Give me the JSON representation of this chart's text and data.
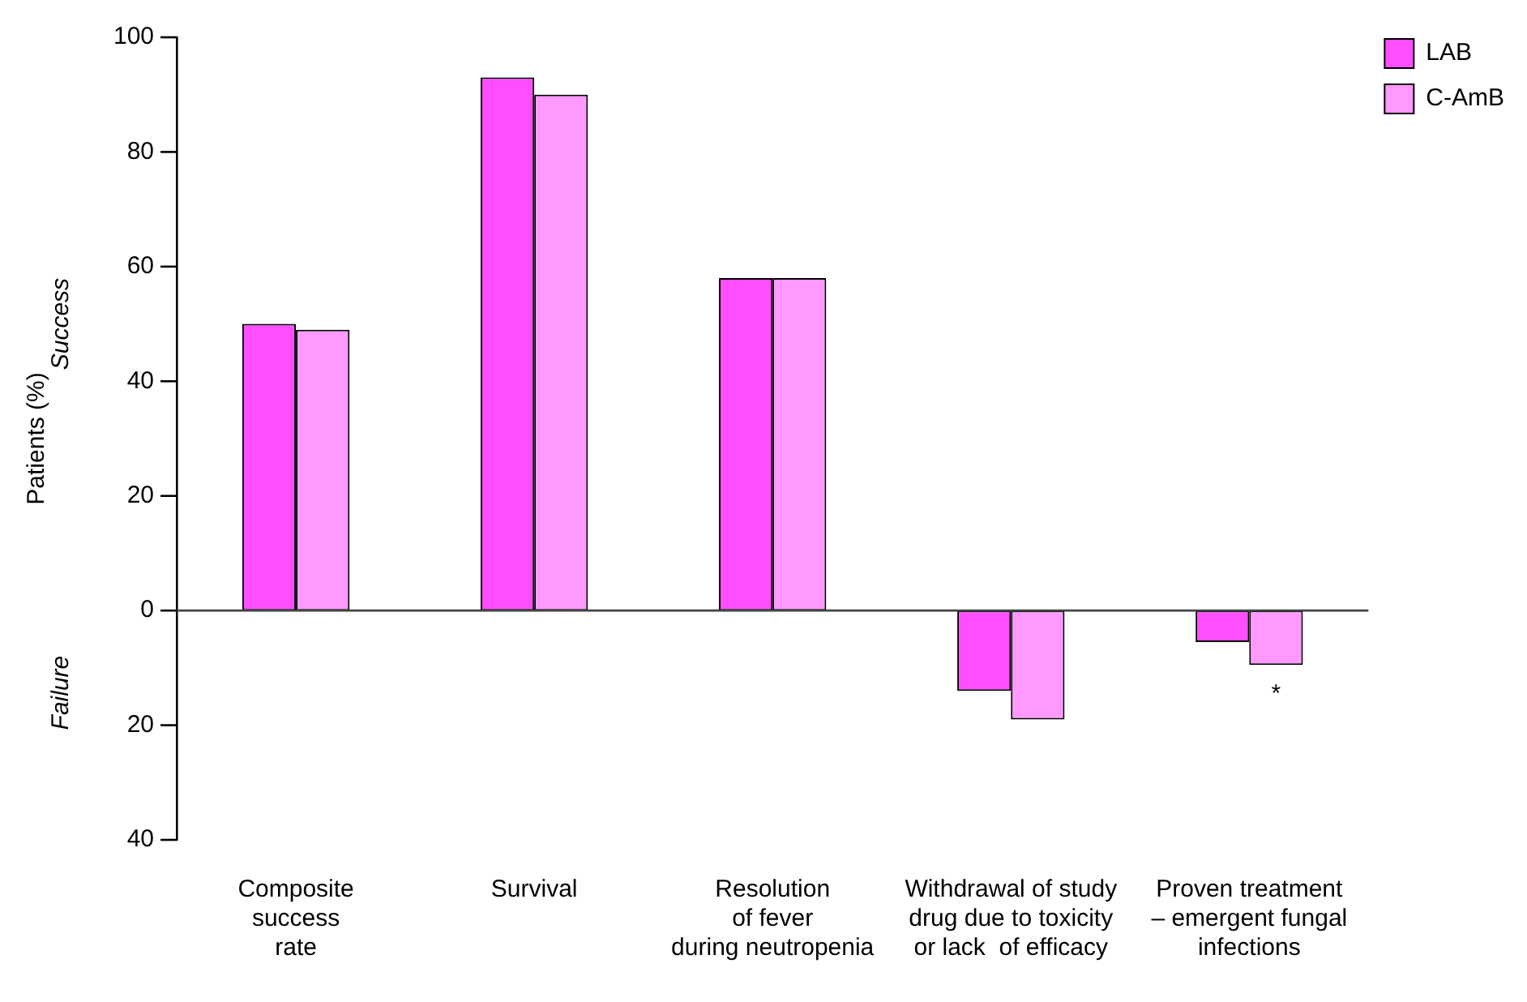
{
  "chart_data": {
    "type": "bar",
    "ylabel": "Patients (%)",
    "categories": [
      "Composite\nsuccess\nrate",
      "Survival",
      "Resolution\nof fever\nduring neutropenia",
      "Withdrawal of study\ndrug due to toxicity\nor lack  of efficacy",
      "Proven treatment\n– emergent fungal\ninfections"
    ],
    "series": [
      {
        "name": "LAB",
        "color": "#ff4dff",
        "values": [
          50,
          93,
          58,
          -14,
          -5.5
        ]
      },
      {
        "name": "C-AmB",
        "color": "#ff99ff",
        "values": [
          49,
          90,
          58,
          -19,
          -9.5
        ]
      }
    ],
    "ylim": [
      -40,
      100
    ],
    "yticks": [
      {
        "value": -40,
        "label": "40"
      },
      {
        "value": -20,
        "label": "20"
      },
      0,
      20,
      40,
      60,
      80,
      100
    ],
    "annotations": [
      "Success",
      "Failure",
      "*"
    ],
    "legend": "top right"
  }
}
